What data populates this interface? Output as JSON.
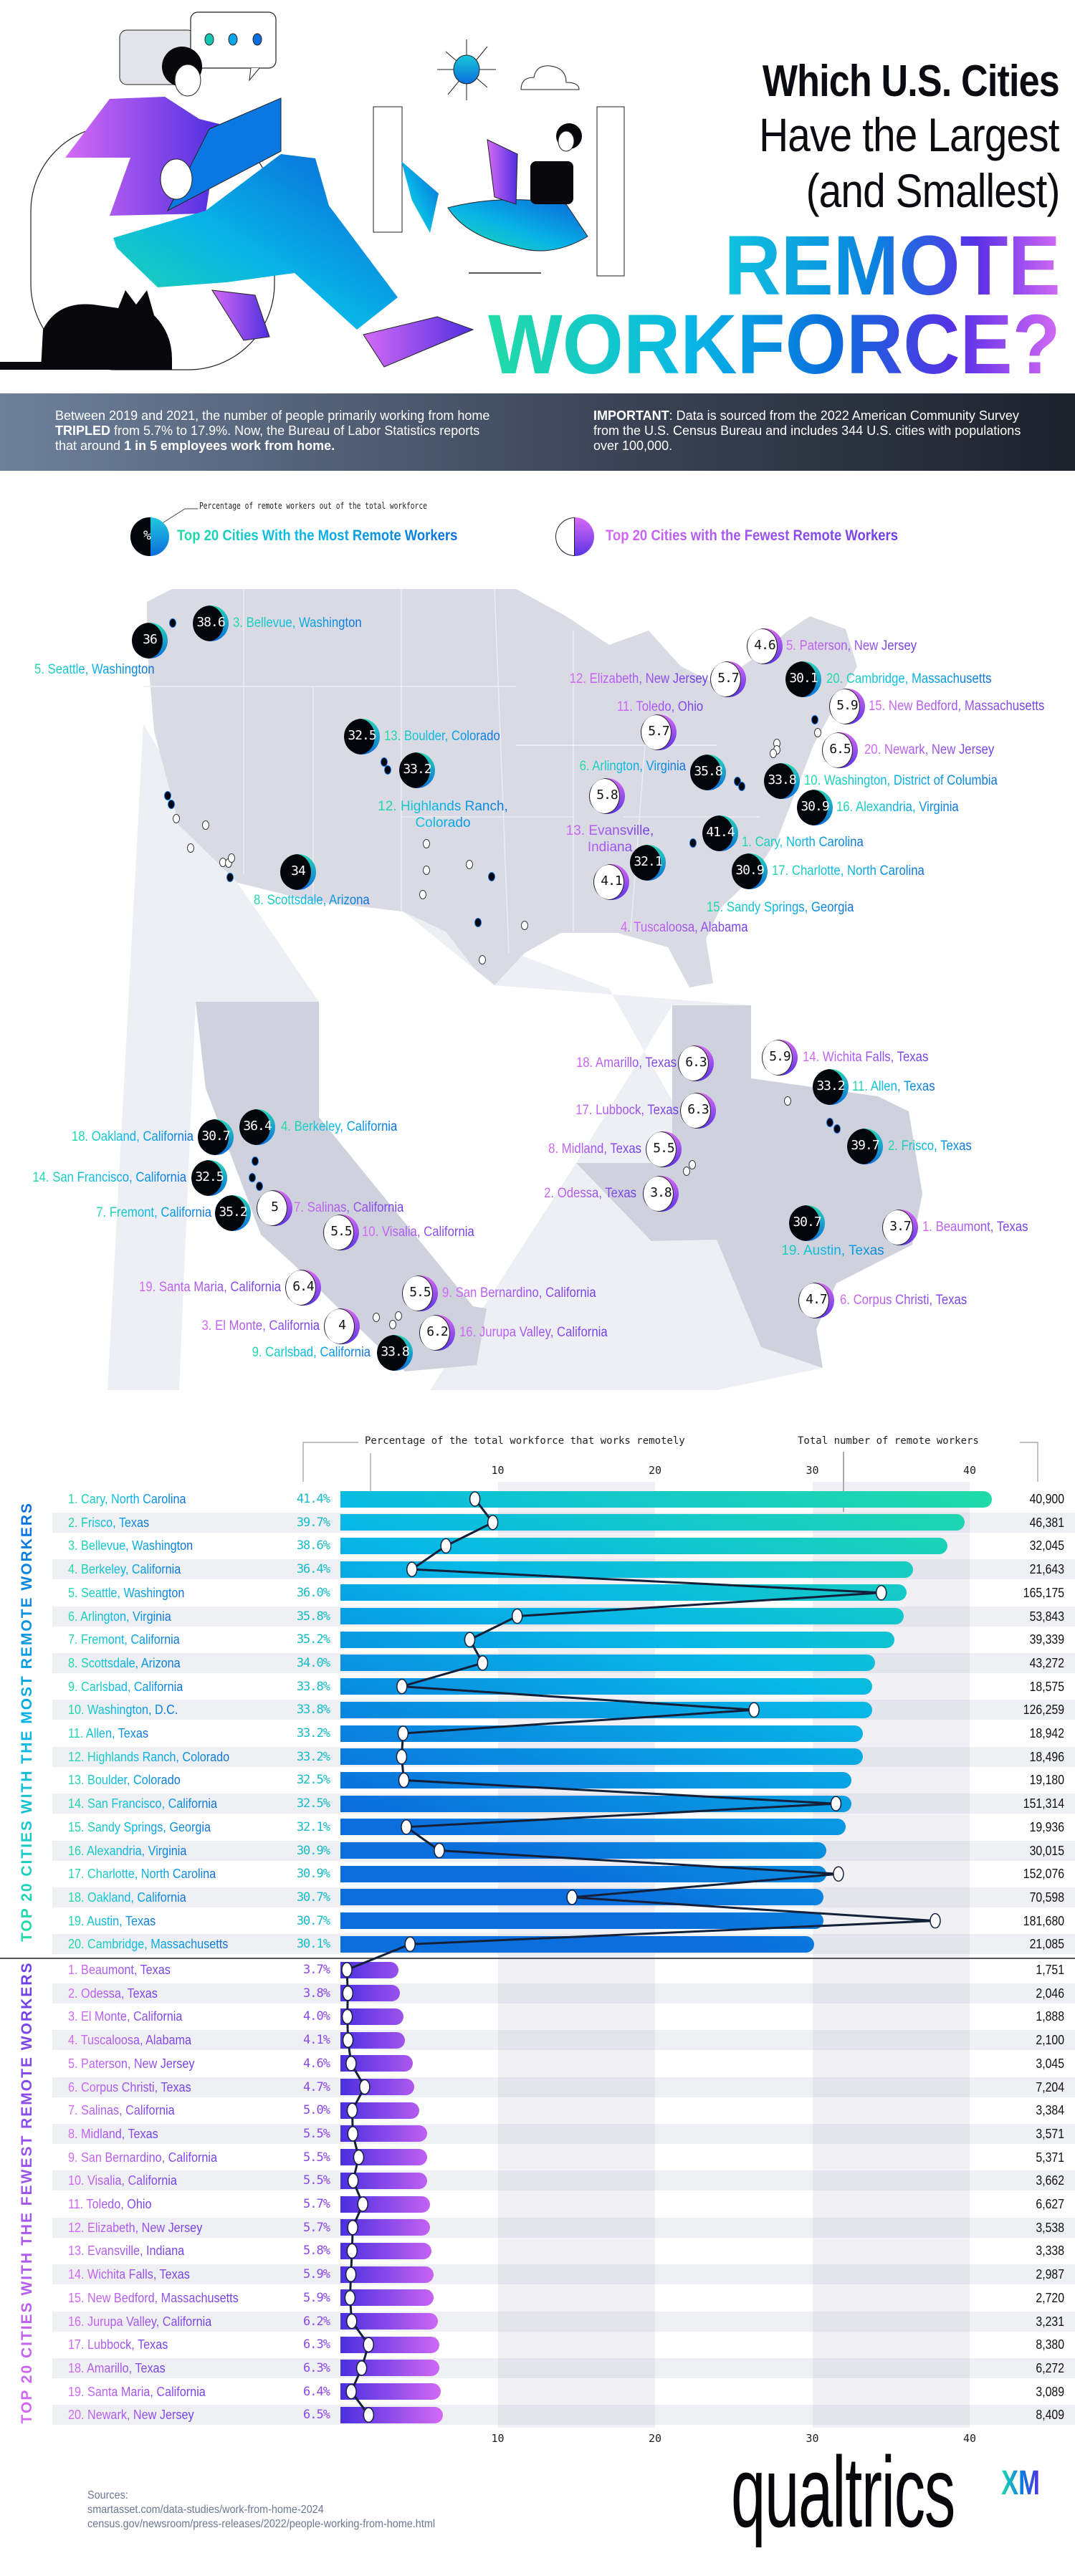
{
  "header": {
    "title_line1": "Which U.S. Cities",
    "title_line2": "Have the Largest",
    "title_line3": "(and Smallest)",
    "title_line4": "REMOTE",
    "title_line5": "WORKFORCE?"
  },
  "banner": {
    "left_text_1": "Between 2019 and 2021, the number of people primarily working from home",
    "left_bold_1": "TRIPLED",
    "left_text_2": " from 5.7% to 17.9%. Now, the Bureau of Labor Statistics reports",
    "left_text_3": "that around ",
    "left_bold_2": "1 in 5 employees work from home.",
    "right_bold": "IMPORTANT",
    "right_text": ": Data is sourced from the 2022 American Community Survey from the U.S. Census Bureau and includes 344 U.S. cities with populations over 100,000."
  },
  "legend": {
    "note": "Percentage of remote workers out of the total workforce",
    "symbol": "%",
    "most_label": "Top 20 Cities With the Most Remote Workers",
    "fewest_label": "Top 20 Cities with the Fewest Remote Workers"
  },
  "colors": {
    "most_gradient": [
      "#22dca6",
      "#08b8e6",
      "#0a6edc"
    ],
    "fewest_gradient": [
      "#d66af5",
      "#6a3ee8"
    ],
    "map_fill": "#d9dae3",
    "banner_left": "#6e809b",
    "banner_right": "#1d222b"
  },
  "map": {
    "markers": [
      {
        "label": "3. Bellevue, Washington",
        "value": "38.6",
        "kind": "most"
      },
      {
        "label": "5. Seattle, Washington",
        "value": "36",
        "kind": "most"
      },
      {
        "label": "13. Boulder, Colorado",
        "value": "32.5",
        "kind": "most"
      },
      {
        "label": "12. Highlands Ranch, Colorado",
        "value": "33.2",
        "kind": "most"
      },
      {
        "label": "8. Scottsdale, Arizona",
        "value": "34",
        "kind": "most"
      },
      {
        "label": "5. Paterson, New Jersey",
        "value": "4.6",
        "kind": "few"
      },
      {
        "label": "12. Elizabeth, New Jersey",
        "value": "5.7",
        "kind": "few"
      },
      {
        "label": "20. Cambridge, Massachusetts",
        "value": "30.1",
        "kind": "most"
      },
      {
        "label": "15. New Bedford, Massachusetts",
        "value": "5.9",
        "kind": "few"
      },
      {
        "label": "11. Toledo, Ohio",
        "value": "5.7",
        "kind": "few"
      },
      {
        "label": "20. Newark, New Jersey",
        "value": "6.5",
        "kind": "few"
      },
      {
        "label": "6. Arlington, Virginia",
        "value": "35.8",
        "kind": "most"
      },
      {
        "label": "10. Washington, District of Columbia",
        "value": "33.8",
        "kind": "most"
      },
      {
        "label": "16. Alexandria, Virginia",
        "value": "30.9",
        "kind": "most"
      },
      {
        "label": "13. Evansville, Indiana",
        "value": "5.8",
        "kind": "few"
      },
      {
        "label": "1. Cary, North Carolina",
        "value": "41.4",
        "kind": "most"
      },
      {
        "label": "15. Sandy Springs, Georgia",
        "value": "32.1",
        "kind": "most"
      },
      {
        "label": "17. Charlotte, North Carolina",
        "value": "30.9",
        "kind": "most"
      },
      {
        "label": "4. Tuscaloosa, Alabama",
        "value": "4.1",
        "kind": "few"
      },
      {
        "label": "4. Berkeley, California",
        "value": "36.4",
        "kind": "most"
      },
      {
        "label": "18. Oakland, California",
        "value": "30.7",
        "kind": "most"
      },
      {
        "label": "14. San Francisco, California",
        "value": "32.5",
        "kind": "most"
      },
      {
        "label": "7. Fremont, California",
        "value": "35.2",
        "kind": "most"
      },
      {
        "label": "7. Salinas, California",
        "value": "5",
        "kind": "few"
      },
      {
        "label": "10. Visalia, California",
        "value": "5.5",
        "kind": "few"
      },
      {
        "label": "19. Santa Maria, California",
        "value": "6.4",
        "kind": "few"
      },
      {
        "label": "9. San Bernardino, California",
        "value": "5.5",
        "kind": "few"
      },
      {
        "label": "3. El Monte, California",
        "value": "4",
        "kind": "few"
      },
      {
        "label": "16. Jurupa Valley, California",
        "value": "6.2",
        "kind": "few"
      },
      {
        "label": "9. Carlsbad, California",
        "value": "33.8",
        "kind": "most"
      },
      {
        "label": "18. Amarillo, Texas",
        "value": "6.3",
        "kind": "few"
      },
      {
        "label": "17. Lubbock, Texas",
        "value": "6.3",
        "kind": "few"
      },
      {
        "label": "8. Midland, Texas",
        "value": "5.5",
        "kind": "few"
      },
      {
        "label": "2. Odessa, Texas",
        "value": "3.8",
        "kind": "few"
      },
      {
        "label": "14. Wichita Falls, Texas",
        "value": "5.9",
        "kind": "few"
      },
      {
        "label": "11. Allen, Texas",
        "value": "33.2",
        "kind": "most"
      },
      {
        "label": "2. Frisco, Texas",
        "value": "39.7",
        "kind": "most"
      },
      {
        "label": "19. Austin, Texas",
        "value": "30.7",
        "kind": "most"
      },
      {
        "label": "1. Beaumont, Texas",
        "value": "3.7",
        "kind": "few"
      },
      {
        "label": "6. Corpus Christi, Texas",
        "value": "4.7",
        "kind": "few"
      }
    ]
  },
  "chart_data": {
    "type": "bar",
    "pct_axis_label": "Percentage of the total workforce that works remotely",
    "count_axis_label": "Total number of remote workers",
    "x_ticks": [
      "10",
      "20",
      "30",
      "40"
    ],
    "xlim": [
      0,
      43
    ],
    "grid": "alternating column bands",
    "groups": [
      {
        "title": "TOP 20 CITIES WITH THE MOST REMOTE WORKERS",
        "rows": [
          {
            "city": "1. Cary, North Carolina",
            "pct_label": "41.4%",
            "pct": 41.4,
            "workers_label": "40,900",
            "workers": 40900
          },
          {
            "city": "2. Frisco, Texas",
            "pct_label": "39.7%",
            "pct": 39.7,
            "workers_label": "46,381",
            "workers": 46381
          },
          {
            "city": "3. Bellevue, Washington",
            "pct_label": "38.6%",
            "pct": 38.6,
            "workers_label": "32,045",
            "workers": 32045
          },
          {
            "city": "4. Berkeley, California",
            "pct_label": "36.4%",
            "pct": 36.4,
            "workers_label": "21,643",
            "workers": 21643
          },
          {
            "city": "5. Seattle, Washington",
            "pct_label": "36.0%",
            "pct": 36.0,
            "workers_label": "165,175",
            "workers": 165175
          },
          {
            "city": "6. Arlington, Virginia",
            "pct_label": "35.8%",
            "pct": 35.8,
            "workers_label": "53,843",
            "workers": 53843
          },
          {
            "city": "7. Fremont, California",
            "pct_label": "35.2%",
            "pct": 35.2,
            "workers_label": "39,339",
            "workers": 39339
          },
          {
            "city": "8. Scottsdale, Arizona",
            "pct_label": "34.0%",
            "pct": 34.0,
            "workers_label": "43,272",
            "workers": 43272
          },
          {
            "city": "9. Carlsbad, California",
            "pct_label": "33.8%",
            "pct": 33.8,
            "workers_label": "18,575",
            "workers": 18575
          },
          {
            "city": "10. Washington, D.C.",
            "pct_label": "33.8%",
            "pct": 33.8,
            "workers_label": "126,259",
            "workers": 126259
          },
          {
            "city": "11. Allen, Texas",
            "pct_label": "33.2%",
            "pct": 33.2,
            "workers_label": "18,942",
            "workers": 18942
          },
          {
            "city": "12. Highlands Ranch, Colorado",
            "pct_label": "33.2%",
            "pct": 33.2,
            "workers_label": "18,496",
            "workers": 18496
          },
          {
            "city": "13. Boulder, Colorado",
            "pct_label": "32.5%",
            "pct": 32.5,
            "workers_label": "19,180",
            "workers": 19180
          },
          {
            "city": "14. San Francisco, California",
            "pct_label": "32.5%",
            "pct": 32.5,
            "workers_label": "151,314",
            "workers": 151314
          },
          {
            "city": "15. Sandy Springs, Georgia",
            "pct_label": "32.1%",
            "pct": 32.1,
            "workers_label": "19,936",
            "workers": 19936
          },
          {
            "city": "16. Alexandria, Virginia",
            "pct_label": "30.9%",
            "pct": 30.9,
            "workers_label": "30,015",
            "workers": 30015
          },
          {
            "city": "17. Charlotte, North Carolina",
            "pct_label": "30.9%",
            "pct": 30.9,
            "workers_label": "152,076",
            "workers": 152076
          },
          {
            "city": "18. Oakland, California",
            "pct_label": "30.7%",
            "pct": 30.7,
            "workers_label": "70,598",
            "workers": 70598
          },
          {
            "city": "19. Austin, Texas",
            "pct_label": "30.7%",
            "pct": 30.7,
            "workers_label": "181,680",
            "workers": 181680
          },
          {
            "city": "20. Cambridge, Massachusetts",
            "pct_label": "30.1%",
            "pct": 30.1,
            "workers_label": "21,085",
            "workers": 21085
          }
        ]
      },
      {
        "title": "TOP 20 CITIES WITH THE FEWEST REMOTE WORKERS",
        "rows": [
          {
            "city": "1. Beaumont, Texas",
            "pct_label": "3.7%",
            "pct": 3.7,
            "workers_label": "1,751",
            "workers": 1751
          },
          {
            "city": "2. Odessa, Texas",
            "pct_label": "3.8%",
            "pct": 3.8,
            "workers_label": "2,046",
            "workers": 2046
          },
          {
            "city": "3. El Monte, California",
            "pct_label": "4.0%",
            "pct": 4.0,
            "workers_label": "1,888",
            "workers": 1888
          },
          {
            "city": "4. Tuscaloosa, Alabama",
            "pct_label": "4.1%",
            "pct": 4.1,
            "workers_label": "2,100",
            "workers": 2100
          },
          {
            "city": "5. Paterson, New Jersey",
            "pct_label": "4.6%",
            "pct": 4.6,
            "workers_label": "3,045",
            "workers": 3045
          },
          {
            "city": "6. Corpus Christi, Texas",
            "pct_label": "4.7%",
            "pct": 4.7,
            "workers_label": "7,204",
            "workers": 7204
          },
          {
            "city": "7. Salinas, California",
            "pct_label": "5.0%",
            "pct": 5.0,
            "workers_label": "3,384",
            "workers": 3384
          },
          {
            "city": "8. Midland, Texas",
            "pct_label": "5.5%",
            "pct": 5.5,
            "workers_label": "3,571",
            "workers": 3571
          },
          {
            "city": "9. San Bernardino, California",
            "pct_label": "5.5%",
            "pct": 5.5,
            "workers_label": "5,371",
            "workers": 5371
          },
          {
            "city": "10. Visalia, California",
            "pct_label": "5.5%",
            "pct": 5.5,
            "workers_label": "3,662",
            "workers": 3662
          },
          {
            "city": "11. Toledo, Ohio",
            "pct_label": "5.7%",
            "pct": 5.7,
            "workers_label": "6,627",
            "workers": 6627
          },
          {
            "city": "12. Elizabeth, New Jersey",
            "pct_label": "5.7%",
            "pct": 5.7,
            "workers_label": "3,538",
            "workers": 3538
          },
          {
            "city": "13. Evansville, Indiana",
            "pct_label": "5.8%",
            "pct": 5.8,
            "workers_label": "3,338",
            "workers": 3338
          },
          {
            "city": "14. Wichita Falls, Texas",
            "pct_label": "5.9%",
            "pct": 5.9,
            "workers_label": "2,987",
            "workers": 2987
          },
          {
            "city": "15. New Bedford, Massachusetts",
            "pct_label": "5.9%",
            "pct": 5.9,
            "workers_label": "2,720",
            "workers": 2720
          },
          {
            "city": "16. Jurupa Valley, California",
            "pct_label": "6.2%",
            "pct": 6.2,
            "workers_label": "3,231",
            "workers": 3231
          },
          {
            "city": "17. Lubbock, Texas",
            "pct_label": "6.3%",
            "pct": 6.3,
            "workers_label": "8,380",
            "workers": 8380
          },
          {
            "city": "18. Amarillo, Texas",
            "pct_label": "6.3%",
            "pct": 6.3,
            "workers_label": "6,272",
            "workers": 6272
          },
          {
            "city": "19. Santa Maria, California",
            "pct_label": "6.4%",
            "pct": 6.4,
            "workers_label": "3,089",
            "workers": 3089
          },
          {
            "city": "20. Newark, New Jersey",
            "pct_label": "6.5%",
            "pct": 6.5,
            "workers_label": "8,409",
            "workers": 8409
          }
        ]
      }
    ]
  },
  "sources": {
    "heading": "Sources:",
    "items": [
      "smartasset.com/data-studies/work-from-home-2024",
      "census.gov/newsroom/press-releases/2022/people-working-from-home.html"
    ]
  },
  "logo": {
    "name": "qualtrics",
    "superscript": "XM"
  }
}
